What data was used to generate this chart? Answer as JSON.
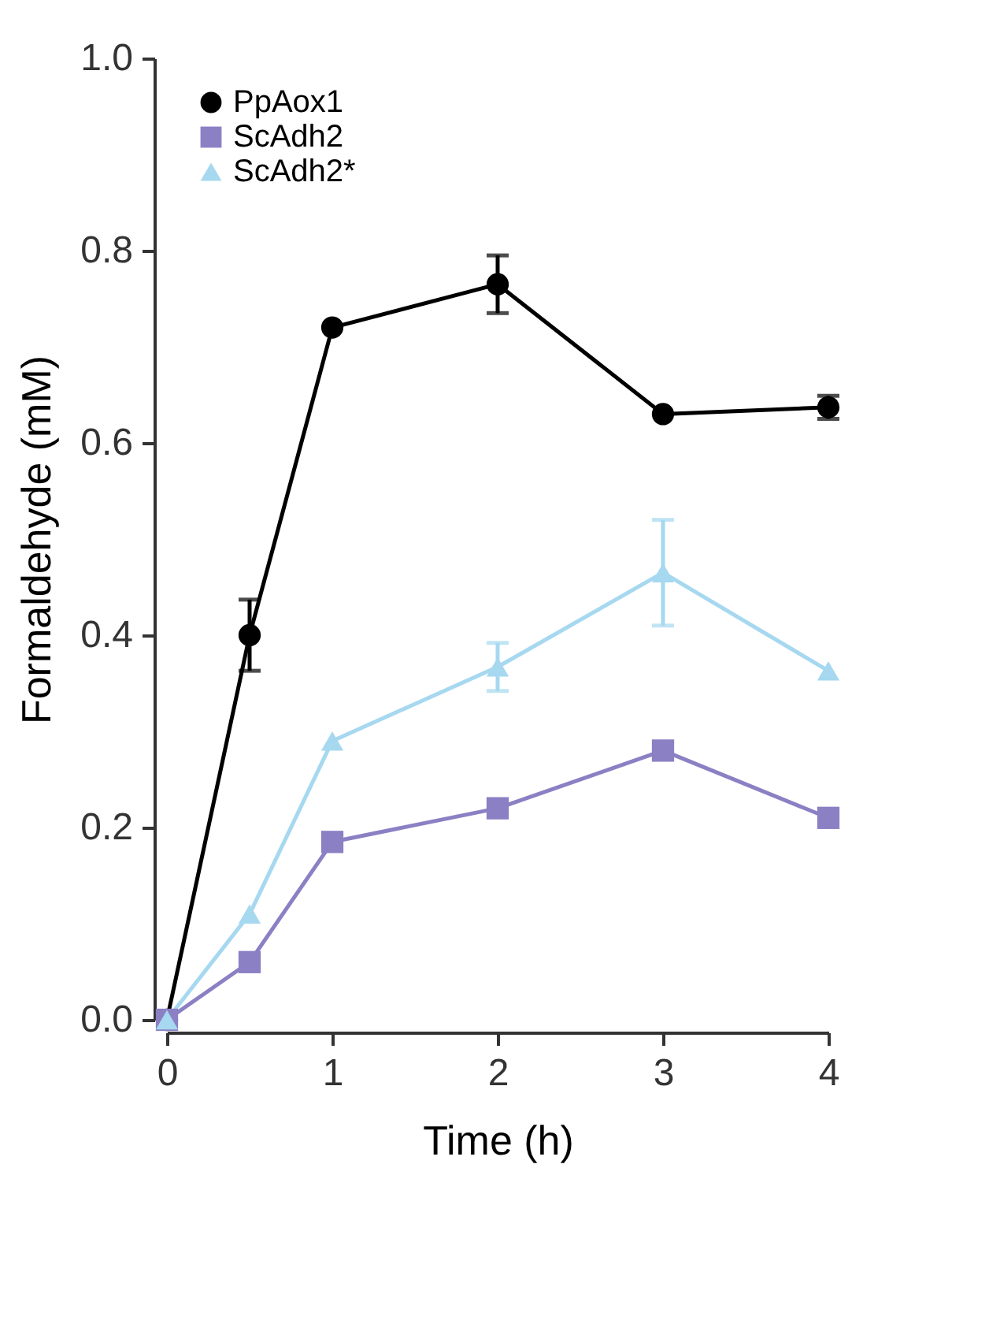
{
  "chart_data": {
    "type": "line",
    "xlabel": "Time (h)",
    "ylabel": "Formaldehyde (mM)",
    "x": [
      0,
      0.5,
      1,
      2,
      3,
      4
    ],
    "xlim": [
      0,
      4
    ],
    "xticks": [
      0,
      1,
      2,
      3,
      4
    ],
    "ylim": [
      0,
      1.0
    ],
    "yticks": [
      {
        "value": 0,
        "label": "0.0"
      },
      0.2,
      0.4,
      0.6,
      0.8,
      {
        "value": 1.0,
        "label": "1.0"
      }
    ],
    "grid": false,
    "legend": "top left",
    "line_style": "solid",
    "series": [
      {
        "name": "PpAox1",
        "color": "#000000",
        "marker": "circle",
        "values": [
          0,
          0.4,
          0.72,
          0.765,
          0.63,
          0.637
        ],
        "errors": [
          null,
          0.037,
          null,
          0.03,
          null,
          0.012
        ]
      },
      {
        "name": "ScAdh2",
        "color": "#8b80c4",
        "marker": "square",
        "values": [
          0,
          0.06,
          0.185,
          0.22,
          0.28,
          0.21
        ],
        "errors": [
          null,
          null,
          null,
          null,
          null,
          null
        ]
      },
      {
        "name": "ScAdh2*",
        "color": "#a6d8f0",
        "marker": "triangle",
        "values": [
          0,
          0.11,
          0.29,
          0.367,
          0.465,
          0.363
        ],
        "errors": [
          null,
          null,
          null,
          0.025,
          0.055,
          null
        ]
      }
    ]
  }
}
